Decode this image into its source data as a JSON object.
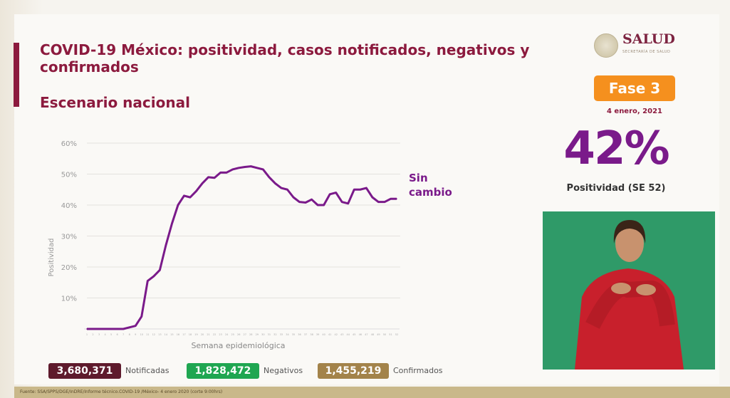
{
  "header": {
    "title": "COVID-19 México: positividad, casos notificados, negativos y confirmados",
    "subtitle": "Escenario nacional"
  },
  "logo": {
    "name": "SALUD",
    "sub": "SECRETARÍA DE SALUD"
  },
  "phase": {
    "label": "Fase 3",
    "date": "4 enero, 2021",
    "color": "#f5901e"
  },
  "positivity": {
    "value": "42%",
    "label": "Positividad (SE 52)",
    "color": "#7a1a8a"
  },
  "annotation": {
    "line1": "Sin",
    "line2": "cambio"
  },
  "chart_data": {
    "type": "line",
    "xlabel": "Semana epidemiológica",
    "ylabel": "Positividad",
    "ylim": [
      0,
      60
    ],
    "yticks": [
      "10%",
      "20%",
      "30%",
      "40%",
      "50%",
      "60%"
    ],
    "grid": true,
    "color": "#7a1a8a",
    "x": [
      1,
      2,
      3,
      4,
      5,
      6,
      7,
      8,
      9,
      10,
      11,
      12,
      13,
      14,
      15,
      16,
      17,
      18,
      19,
      20,
      21,
      22,
      23,
      24,
      25,
      26,
      27,
      28,
      29,
      30,
      31,
      32,
      33,
      34,
      35,
      36,
      37,
      38,
      39,
      40,
      41,
      42,
      43,
      44,
      45,
      46,
      47,
      48,
      49,
      50,
      51,
      52
    ],
    "values": [
      0,
      0,
      0,
      0,
      0,
      0,
      0,
      0.5,
      1,
      4,
      15.5,
      17,
      19,
      27,
      34,
      40,
      43,
      42.5,
      44.5,
      47,
      49,
      48.8,
      50.5,
      50.5,
      51.5,
      52,
      52.3,
      52.5,
      52,
      51.5,
      49,
      47,
      45.5,
      45,
      42.5,
      41,
      40.8,
      41.8,
      40,
      40,
      43.5,
      44,
      41,
      40.5,
      45,
      45,
      45.5,
      42.5,
      41,
      41,
      42,
      42
    ]
  },
  "totals": [
    {
      "value": "3,680,371",
      "label": "Notificadas",
      "color": "#5e1a2c"
    },
    {
      "value": "1,828,472",
      "label": "Negativos",
      "color": "#1fa651"
    },
    {
      "value": "1,455,219",
      "label": "Confirmados",
      "color": "#a3834a"
    }
  ],
  "footer": "Fuente: SSA/SPPS/DGE/InDRE/Informe técnico.COVID-19 /México- 4 enero 2020 (corte 9:00hrs)"
}
